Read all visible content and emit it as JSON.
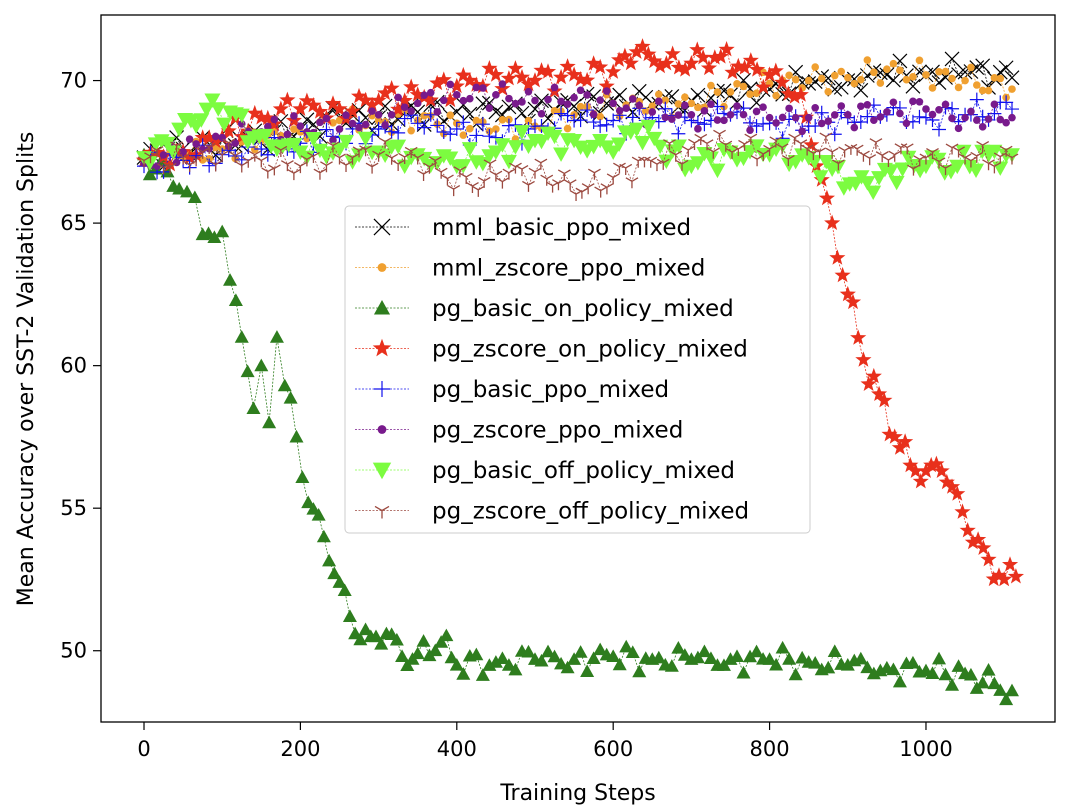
{
  "chart_data": {
    "type": "line",
    "title": "",
    "xlabel": "Training Steps",
    "ylabel": "Mean Accuracy over SST-2 Validation Splits",
    "xlim": [
      -55,
      1165
    ],
    "ylim": [
      47.5,
      72.3
    ],
    "xticks": [
      0,
      200,
      400,
      600,
      800,
      1000
    ],
    "yticks": [
      50,
      55,
      60,
      65,
      70
    ],
    "grid": false,
    "legend_position": "center",
    "series": [
      {
        "name": "mml_basic_ppo_mixed",
        "color": "#000000",
        "marker": "x",
        "x": [
          0,
          50,
          100,
          150,
          200,
          250,
          300,
          350,
          400,
          450,
          500,
          550,
          600,
          650,
          700,
          750,
          800,
          850,
          900,
          950,
          1000,
          1050,
          1110
        ],
        "values": [
          67.3,
          67.6,
          67.9,
          68.0,
          68.3,
          68.7,
          68.7,
          68.9,
          68.9,
          68.9,
          69.0,
          69.1,
          69.3,
          69.2,
          69.3,
          69.5,
          69.7,
          69.9,
          70.0,
          70.2,
          70.2,
          70.3,
          70.1
        ]
      },
      {
        "name": "mml_zscore_ppo_mixed",
        "color": "#f0a030",
        "marker": "dot",
        "x": [
          0,
          50,
          100,
          150,
          200,
          250,
          300,
          350,
          400,
          450,
          500,
          550,
          600,
          650,
          700,
          750,
          800,
          850,
          900,
          950,
          1000,
          1050,
          1110
        ],
        "values": [
          67.2,
          67.3,
          67.6,
          67.9,
          68.2,
          68.6,
          68.6,
          68.6,
          68.5,
          68.3,
          68.4,
          68.8,
          69.2,
          69.1,
          69.2,
          69.6,
          69.9,
          70.0,
          70.1,
          70.4,
          70.2,
          70.0,
          69.7
        ]
      },
      {
        "name": "pg_basic_on_policy_mixed",
        "color": "#2e7d1e",
        "marker": "triangle-up",
        "x": [
          0,
          15,
          30,
          45,
          55,
          65,
          75,
          90,
          100,
          110,
          125,
          140,
          150,
          160,
          170,
          180,
          195,
          210,
          230,
          250,
          270,
          290,
          310,
          330,
          350,
          380,
          400,
          450,
          500,
          550,
          600,
          650,
          700,
          750,
          800,
          850,
          900,
          950,
          1000,
          1050,
          1110
        ],
        "values": [
          67.4,
          66.9,
          66.8,
          66.2,
          66.1,
          65.9,
          64.6,
          64.5,
          64.7,
          63.0,
          61.0,
          58.5,
          60.0,
          58.0,
          61.0,
          59.3,
          57.5,
          55.2,
          54.0,
          52.4,
          50.6,
          50.5,
          50.6,
          49.8,
          49.9,
          50.3,
          49.5,
          49.6,
          49.7,
          49.7,
          49.8,
          49.7,
          49.7,
          49.7,
          49.7,
          49.6,
          49.5,
          49.4,
          49.3,
          49.2,
          48.6
        ]
      },
      {
        "name": "pg_zscore_on_policy_mixed",
        "color": "#e8301c",
        "marker": "star",
        "x": [
          0,
          50,
          100,
          150,
          200,
          250,
          300,
          350,
          400,
          450,
          500,
          550,
          600,
          630,
          660,
          700,
          730,
          760,
          800,
          840,
          860,
          880,
          900,
          920,
          940,
          960,
          980,
          1000,
          1020,
          1040,
          1060,
          1080,
          1100,
          1115
        ],
        "values": [
          67.2,
          67.5,
          68.0,
          68.7,
          69.0,
          69.0,
          69.3,
          69.5,
          69.8,
          70.2,
          70.0,
          70.2,
          70.3,
          71.0,
          70.5,
          70.6,
          70.8,
          70.5,
          70.2,
          69.5,
          67.0,
          65.0,
          62.5,
          60.2,
          59.0,
          57.5,
          56.5,
          56.3,
          56.3,
          55.5,
          53.8,
          53.2,
          52.5,
          52.6
        ]
      },
      {
        "name": "pg_basic_ppo_mixed",
        "color": "#1010ee",
        "marker": "plus",
        "x": [
          0,
          50,
          100,
          150,
          200,
          250,
          300,
          350,
          400,
          450,
          500,
          550,
          600,
          650,
          700,
          750,
          800,
          850,
          900,
          950,
          1000,
          1050,
          1110
        ],
        "values": [
          67.0,
          67.2,
          67.4,
          67.6,
          67.8,
          68.0,
          68.3,
          68.5,
          68.3,
          68.0,
          68.4,
          68.6,
          68.6,
          68.7,
          68.6,
          68.8,
          68.5,
          68.4,
          68.7,
          68.8,
          68.7,
          68.8,
          69.0
        ]
      },
      {
        "name": "pg_zscore_ppo_mixed",
        "color": "#781a8c",
        "marker": "dot",
        "x": [
          0,
          50,
          100,
          150,
          200,
          250,
          300,
          350,
          400,
          450,
          500,
          550,
          600,
          650,
          700,
          750,
          800,
          850,
          900,
          950,
          1000,
          1050,
          1110
        ],
        "values": [
          67.1,
          67.5,
          68.0,
          68.2,
          68.4,
          68.3,
          68.8,
          69.2,
          69.5,
          69.5,
          69.3,
          69.4,
          69.2,
          68.9,
          68.8,
          68.8,
          68.7,
          68.7,
          68.8,
          68.9,
          69.0,
          68.7,
          68.7
        ]
      },
      {
        "name": "pg_basic_off_policy_mixed",
        "color": "#7cfc40",
        "marker": "triangle-down",
        "x": [
          0,
          30,
          60,
          80,
          110,
          140,
          170,
          200,
          250,
          300,
          350,
          400,
          450,
          500,
          550,
          600,
          630,
          660,
          700,
          750,
          800,
          850,
          880,
          910,
          940,
          970,
          1000,
          1040,
          1080,
          1110
        ],
        "values": [
          67.3,
          67.8,
          68.6,
          69.0,
          68.9,
          68.0,
          67.6,
          67.5,
          67.6,
          67.5,
          67.4,
          67.0,
          67.5,
          67.9,
          67.9,
          67.5,
          68.3,
          67.7,
          67.0,
          67.5,
          67.4,
          67.3,
          66.9,
          66.4,
          66.6,
          66.9,
          67.0,
          67.0,
          67.4,
          67.4
        ]
      },
      {
        "name": "pg_zscore_off_policy_mixed",
        "color": "#9c4a40",
        "marker": "tri-down",
        "x": [
          0,
          50,
          100,
          150,
          200,
          250,
          300,
          350,
          380,
          420,
          450,
          500,
          530,
          560,
          600,
          640,
          680,
          720,
          760,
          800,
          840,
          880,
          920,
          960,
          1000,
          1050,
          1110
        ],
        "values": [
          67.2,
          67.3,
          67.4,
          67.2,
          67.0,
          67.3,
          67.4,
          67.3,
          66.8,
          66.3,
          66.7,
          66.8,
          66.4,
          66.1,
          66.6,
          67.2,
          67.4,
          67.8,
          67.6,
          67.6,
          67.8,
          67.5,
          67.4,
          67.4,
          67.3,
          67.3,
          67.3
        ]
      }
    ]
  }
}
